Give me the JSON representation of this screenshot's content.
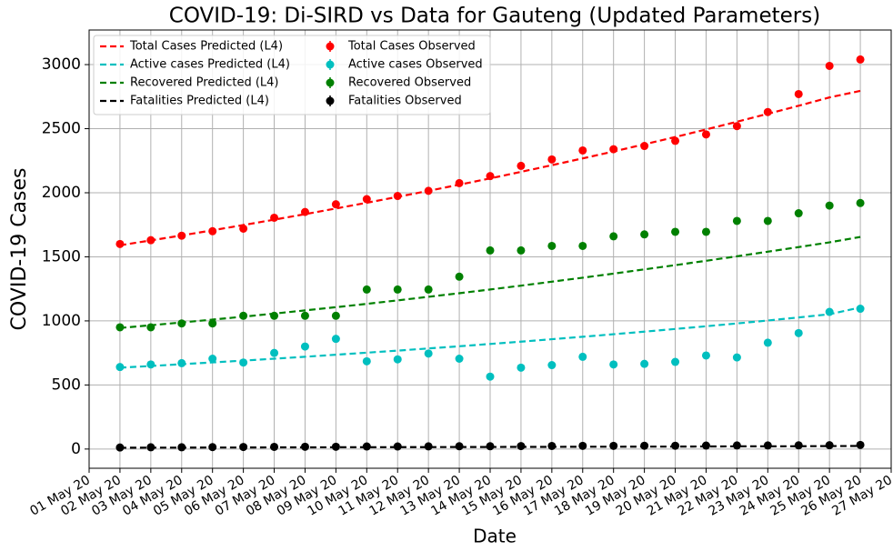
{
  "chart_data": {
    "type": "line",
    "title": "COVID-19: Di-SIRD vs Data for Gauteng (Updated Parameters)",
    "x_label": "Date",
    "y_label": "COVID-19 Cases",
    "categories": [
      "01 May 20",
      "02 May 20",
      "03 May 20",
      "04 May 20",
      "05 May 20",
      "06 May 20",
      "07 May 20",
      "08 May 20",
      "09 May 20",
      "10 May 20",
      "11 May 20",
      "12 May 20",
      "13 May 20",
      "14 May 20",
      "15 May 20",
      "16 May 20",
      "17 May 20",
      "18 May 20",
      "19 May 20",
      "20 May 20",
      "21 May 20",
      "22 May 20",
      "23 May 20",
      "24 May 20",
      "25 May 20",
      "26 May 20",
      "27 May 20"
    ],
    "ylim": [
      -150,
      3270
    ],
    "yticks": [
      0,
      500,
      1000,
      1500,
      2000,
      2500,
      3000
    ],
    "grid": true,
    "legend": "upper left",
    "series": [
      {
        "name": "Total Cases Predicted (L4)",
        "color": "#ff0000",
        "style": "dashed",
        "values": [
          null,
          1590,
          1628,
          1667,
          1707,
          1748,
          1790,
          1833,
          1877,
          1922,
          1968,
          2015,
          2063,
          2112,
          2163,
          2215,
          2268,
          2322,
          2378,
          2435,
          2494,
          2554,
          2616,
          2679,
          2744,
          2795,
          null
        ]
      },
      {
        "name": "Active cases Predicted (L4)",
        "color": "#00bfbf",
        "style": "dashed",
        "values": [
          null,
          635,
          648,
          662,
          676,
          690,
          705,
          720,
          736,
          752,
          768,
          785,
          802,
          820,
          838,
          857,
          876,
          896,
          916,
          937,
          958,
          980,
          1003,
          1027,
          1052,
          1105,
          null
        ]
      },
      {
        "name": "Recovered Predicted (L4)",
        "color": "#008000",
        "style": "dashed",
        "values": [
          null,
          945,
          966,
          988,
          1010,
          1033,
          1057,
          1082,
          1107,
          1133,
          1160,
          1188,
          1216,
          1245,
          1275,
          1306,
          1337,
          1369,
          1402,
          1435,
          1469,
          1504,
          1540,
          1576,
          1613,
          1655,
          null
        ]
      },
      {
        "name": "Fatalities Predicted (L4)",
        "color": "#000000",
        "style": "dashed",
        "values": [
          null,
          10,
          11,
          11,
          12,
          12,
          13,
          13,
          14,
          14,
          15,
          15,
          16,
          16,
          17,
          17,
          18,
          18,
          19,
          19,
          20,
          21,
          21,
          22,
          23,
          24,
          null
        ]
      },
      {
        "name": "Total Cases Observed",
        "color": "#ff0000",
        "style": "markers",
        "values": [
          null,
          1600,
          1630,
          1665,
          1700,
          1720,
          1805,
          1850,
          1910,
          1950,
          1975,
          2015,
          2075,
          2130,
          2210,
          2260,
          2330,
          2340,
          2365,
          2405,
          2455,
          2520,
          2630,
          2770,
          2990,
          3040,
          null
        ]
      },
      {
        "name": "Active cases Observed",
        "color": "#00bfbf",
        "style": "markers",
        "values": [
          null,
          640,
          660,
          670,
          705,
          675,
          750,
          800,
          860,
          685,
          700,
          745,
          705,
          565,
          635,
          655,
          720,
          660,
          665,
          680,
          730,
          715,
          830,
          905,
          1070,
          1095,
          null
        ]
      },
      {
        "name": "Recovered Observed",
        "color": "#008000",
        "style": "markers",
        "values": [
          null,
          950,
          950,
          980,
          980,
          1040,
          1040,
          1040,
          1040,
          1245,
          1245,
          1245,
          1345,
          1550,
          1550,
          1585,
          1585,
          1660,
          1675,
          1695,
          1695,
          1780,
          1780,
          1840,
          1900,
          1920,
          null
        ]
      },
      {
        "name": "Fatalities Observed",
        "color": "#000000",
        "style": "markers",
        "values": [
          null,
          12,
          14,
          14,
          15,
          16,
          17,
          18,
          18,
          20,
          20,
          21,
          22,
          22,
          23,
          24,
          25,
          25,
          26,
          26,
          27,
          28,
          28,
          29,
          30,
          32,
          null
        ]
      }
    ]
  }
}
